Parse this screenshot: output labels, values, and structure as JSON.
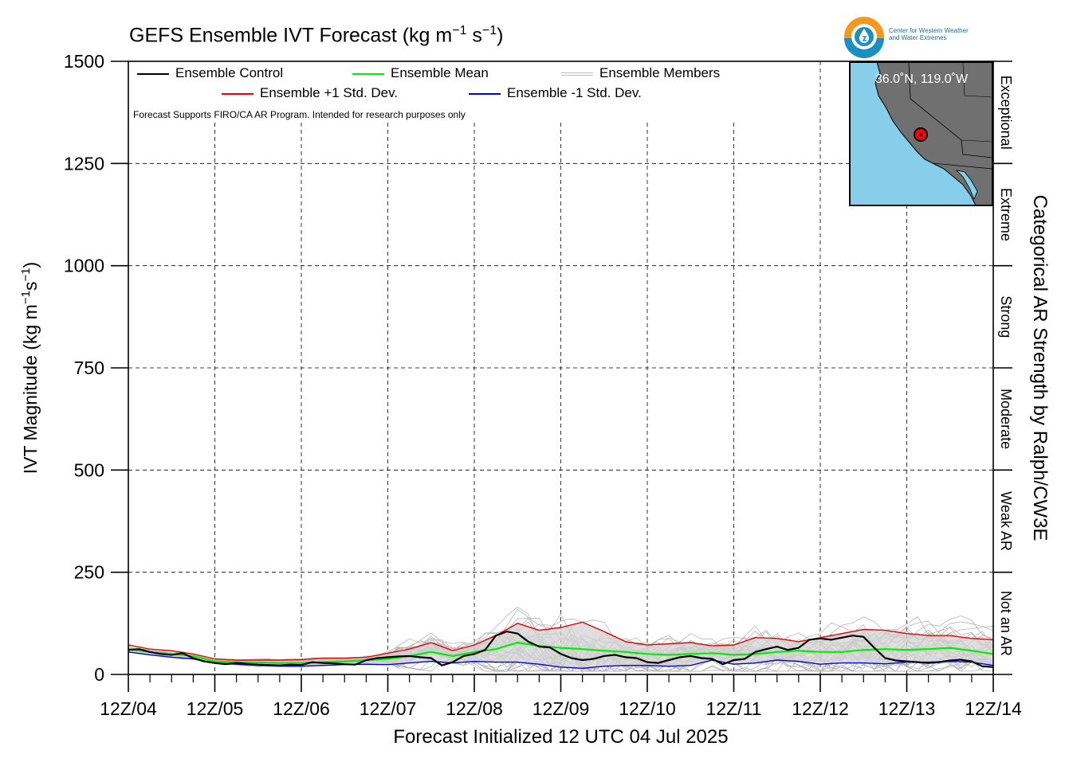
{
  "chart_data": {
    "type": "line",
    "title": "GEFS Ensemble IVT Forecast (kg m",
    "title_exp1": "−1",
    "title_mid": " s",
    "title_exp2": "−1",
    "title_end": ")",
    "xlabel": "Forecast Initialized 12 UTC 04 Jul 2025",
    "ylabel": "IVT Magnitude (kg m",
    "ylabel_exp1": "−1",
    "ylabel_mid": "s",
    "ylabel_exp2": "−1",
    "ylabel_end": ")",
    "y2label": "Categorical AR Strength by Ralph/CW3E",
    "xlim": [
      0,
      10
    ],
    "ylim": [
      0,
      1500
    ],
    "xticks": [
      "12Z/04",
      "12Z/05",
      "12Z/06",
      "12Z/07",
      "12Z/08",
      "12Z/09",
      "12Z/10",
      "12Z/11",
      "12Z/12",
      "12Z/13",
      "12Z/14"
    ],
    "yticks": [
      0,
      250,
      500,
      750,
      1000,
      1250,
      1500
    ],
    "grid": true,
    "legend": "top-left",
    "categories_right": [
      {
        "label": "Not an AR",
        "from": 0,
        "to": 250
      },
      {
        "label": "Weak AR",
        "from": 250,
        "to": 500
      },
      {
        "label": "Moderate",
        "from": 500,
        "to": 750
      },
      {
        "label": "Strong",
        "from": 750,
        "to": 1000
      },
      {
        "label": "Extreme",
        "from": 1000,
        "to": 1250
      },
      {
        "label": "Exceptional",
        "from": 1250,
        "to": 1500
      }
    ],
    "series": [
      {
        "name": "Ensemble Control",
        "color": "#000000",
        "style": "control",
        "x": [
          0,
          0.125,
          0.25,
          0.375,
          0.5,
          0.625,
          0.75,
          0.875,
          1,
          1.125,
          1.25,
          1.375,
          1.5,
          1.625,
          1.75,
          1.875,
          2,
          2.125,
          2.25,
          2.375,
          2.5,
          2.625,
          2.75,
          2.875,
          3,
          3.125,
          3.25,
          3.375,
          3.5,
          3.625,
          3.75,
          3.875,
          4,
          4.125,
          4.25,
          4.375,
          4.5,
          4.625,
          4.75,
          4.875,
          5,
          5.125,
          5.25,
          5.375,
          5.5,
          5.625,
          5.75,
          5.875,
          6,
          6.125,
          6.25,
          6.375,
          6.5,
          6.625,
          6.75,
          6.875,
          7,
          7.125,
          7.25,
          7.375,
          7.5,
          7.625,
          7.75,
          7.875,
          8,
          8.125,
          8.25,
          8.375,
          8.5,
          8.625,
          8.75,
          8.875,
          9,
          9.125,
          9.25,
          9.375,
          9.5,
          9.625,
          9.75,
          9.875,
          10
        ],
        "y": [
          60,
          62,
          55,
          50,
          48,
          52,
          40,
          32,
          28,
          25,
          28,
          26,
          24,
          23,
          22,
          24,
          23,
          30,
          28,
          27,
          25,
          24,
          35,
          40,
          42,
          44,
          45,
          42,
          40,
          22,
          30,
          45,
          50,
          60,
          95,
          105,
          100,
          80,
          68,
          66,
          50,
          40,
          35,
          38,
          45,
          48,
          42,
          40,
          30,
          28,
          35,
          42,
          45,
          40,
          38,
          25,
          35,
          38,
          55,
          62,
          68,
          60,
          65,
          85,
          88,
          85,
          90,
          95,
          92,
          65,
          40,
          34,
          32,
          30,
          28,
          30,
          34,
          36,
          32,
          20,
          18
        ]
      },
      {
        "name": "Ensemble Mean",
        "color": "#00ee00",
        "style": "mean",
        "x": [
          0,
          0.25,
          0.5,
          0.75,
          1,
          1.25,
          1.5,
          1.75,
          2,
          2.25,
          2.5,
          2.75,
          3,
          3.25,
          3.5,
          3.75,
          4,
          4.25,
          4.5,
          4.75,
          5,
          5.25,
          5.5,
          5.75,
          6,
          6.25,
          6.5,
          6.75,
          7,
          7.25,
          7.5,
          7.75,
          8,
          8.25,
          8.5,
          8.75,
          9,
          9.25,
          9.5,
          9.75,
          10
        ],
        "y": [
          62,
          55,
          50,
          45,
          32,
          30,
          29,
          28,
          28,
          30,
          32,
          35,
          38,
          45,
          55,
          45,
          55,
          62,
          78,
          70,
          65,
          62,
          58,
          55,
          50,
          48,
          50,
          52,
          48,
          50,
          55,
          58,
          55,
          55,
          60,
          62,
          60,
          62,
          65,
          58,
          50
        ]
      },
      {
        "name": "Ensemble +1 Std. Dev.",
        "color": "#ee0000",
        "style": "plus",
        "x": [
          0,
          0.25,
          0.5,
          0.75,
          1,
          1.25,
          1.5,
          1.75,
          2,
          2.25,
          2.5,
          2.75,
          3,
          3.25,
          3.5,
          3.75,
          4,
          4.25,
          4.5,
          4.75,
          5,
          5.25,
          5.5,
          5.75,
          6,
          6.25,
          6.5,
          6.75,
          7,
          7.25,
          7.5,
          7.75,
          8,
          8.25,
          8.5,
          8.75,
          9,
          9.25,
          9.5,
          9.75,
          10
        ],
        "y": [
          72,
          62,
          58,
          50,
          38,
          35,
          35,
          35,
          36,
          40,
          40,
          42,
          52,
          62,
          78,
          58,
          72,
          95,
          125,
          108,
          115,
          128,
          105,
          80,
          72,
          75,
          78,
          70,
          72,
          90,
          88,
          80,
          90,
          100,
          110,
          108,
          100,
          95,
          95,
          88,
          85
        ]
      },
      {
        "name": "Ensemble -1 Std. Dev.",
        "color": "#0000ee",
        "style": "minus",
        "x": [
          0,
          0.25,
          0.5,
          0.75,
          1,
          1.25,
          1.5,
          1.75,
          2,
          2.25,
          2.5,
          2.75,
          3,
          3.25,
          3.5,
          3.75,
          4,
          4.25,
          4.5,
          4.75,
          5,
          5.25,
          5.5,
          5.75,
          6,
          6.25,
          6.5,
          6.75,
          7,
          7.25,
          7.5,
          7.75,
          8,
          8.25,
          8.5,
          8.75,
          9,
          9.25,
          9.5,
          9.75,
          10
        ],
        "y": [
          55,
          48,
          42,
          38,
          28,
          25,
          22,
          20,
          20,
          22,
          24,
          25,
          24,
          28,
          32,
          28,
          32,
          30,
          30,
          25,
          18,
          15,
          20,
          22,
          22,
          20,
          22,
          35,
          25,
          28,
          35,
          32,
          25,
          28,
          28,
          26,
          30,
          30,
          32,
          30,
          22
        ]
      },
      {
        "name": "Ensemble Members",
        "color": "#bbbbbb",
        "style": "members"
      }
    ]
  },
  "legend": {
    "control": "Ensemble Control",
    "mean": "Ensemble Mean",
    "members": "Ensemble Members",
    "plus": "Ensemble +1 Std. Dev.",
    "minus": "Ensemble -1 Std. Dev."
  },
  "note": "Forecast Supports FIRO/CA AR Program. Intended for research purposes only",
  "inset": {
    "coord": "36.0˚N, 119.0˚W",
    "lat": 36.0,
    "lon": -119.0,
    "ocean_color": "#87ceeb",
    "land_color": "#707070",
    "marker_color": "#ff0000"
  },
  "logo": {
    "line1": "Center for Western Weather",
    "line2": "and Water Extremes"
  },
  "colors": {
    "spread_fill": "#d3d3d3"
  }
}
